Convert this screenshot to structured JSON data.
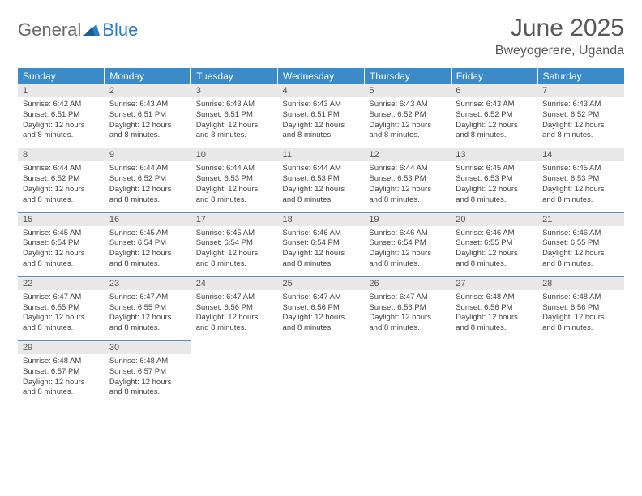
{
  "logo": {
    "word1": "General",
    "word2": "Blue"
  },
  "title": "June 2025",
  "location": "Bweyogerere, Uganda",
  "colors": {
    "header_bg": "#3b8bc8",
    "header_text": "#ffffff",
    "daynum_bg": "#e8e8e8",
    "border": "#5a8cb5",
    "logo_gray": "#6b6b6b",
    "logo_blue": "#2f7ec1"
  },
  "weekdays": [
    "Sunday",
    "Monday",
    "Tuesday",
    "Wednesday",
    "Thursday",
    "Friday",
    "Saturday"
  ],
  "days": [
    {
      "n": "1",
      "sr": "Sunrise: 6:42 AM",
      "ss": "Sunset: 6:51 PM",
      "dl1": "Daylight: 12 hours",
      "dl2": "and 8 minutes."
    },
    {
      "n": "2",
      "sr": "Sunrise: 6:43 AM",
      "ss": "Sunset: 6:51 PM",
      "dl1": "Daylight: 12 hours",
      "dl2": "and 8 minutes."
    },
    {
      "n": "3",
      "sr": "Sunrise: 6:43 AM",
      "ss": "Sunset: 6:51 PM",
      "dl1": "Daylight: 12 hours",
      "dl2": "and 8 minutes."
    },
    {
      "n": "4",
      "sr": "Sunrise: 6:43 AM",
      "ss": "Sunset: 6:51 PM",
      "dl1": "Daylight: 12 hours",
      "dl2": "and 8 minutes."
    },
    {
      "n": "5",
      "sr": "Sunrise: 6:43 AM",
      "ss": "Sunset: 6:52 PM",
      "dl1": "Daylight: 12 hours",
      "dl2": "and 8 minutes."
    },
    {
      "n": "6",
      "sr": "Sunrise: 6:43 AM",
      "ss": "Sunset: 6:52 PM",
      "dl1": "Daylight: 12 hours",
      "dl2": "and 8 minutes."
    },
    {
      "n": "7",
      "sr": "Sunrise: 6:43 AM",
      "ss": "Sunset: 6:52 PM",
      "dl1": "Daylight: 12 hours",
      "dl2": "and 8 minutes."
    },
    {
      "n": "8",
      "sr": "Sunrise: 6:44 AM",
      "ss": "Sunset: 6:52 PM",
      "dl1": "Daylight: 12 hours",
      "dl2": "and 8 minutes."
    },
    {
      "n": "9",
      "sr": "Sunrise: 6:44 AM",
      "ss": "Sunset: 6:52 PM",
      "dl1": "Daylight: 12 hours",
      "dl2": "and 8 minutes."
    },
    {
      "n": "10",
      "sr": "Sunrise: 6:44 AM",
      "ss": "Sunset: 6:53 PM",
      "dl1": "Daylight: 12 hours",
      "dl2": "and 8 minutes."
    },
    {
      "n": "11",
      "sr": "Sunrise: 6:44 AM",
      "ss": "Sunset: 6:53 PM",
      "dl1": "Daylight: 12 hours",
      "dl2": "and 8 minutes."
    },
    {
      "n": "12",
      "sr": "Sunrise: 6:44 AM",
      "ss": "Sunset: 6:53 PM",
      "dl1": "Daylight: 12 hours",
      "dl2": "and 8 minutes."
    },
    {
      "n": "13",
      "sr": "Sunrise: 6:45 AM",
      "ss": "Sunset: 6:53 PM",
      "dl1": "Daylight: 12 hours",
      "dl2": "and 8 minutes."
    },
    {
      "n": "14",
      "sr": "Sunrise: 6:45 AM",
      "ss": "Sunset: 6:53 PM",
      "dl1": "Daylight: 12 hours",
      "dl2": "and 8 minutes."
    },
    {
      "n": "15",
      "sr": "Sunrise: 6:45 AM",
      "ss": "Sunset: 6:54 PM",
      "dl1": "Daylight: 12 hours",
      "dl2": "and 8 minutes."
    },
    {
      "n": "16",
      "sr": "Sunrise: 6:45 AM",
      "ss": "Sunset: 6:54 PM",
      "dl1": "Daylight: 12 hours",
      "dl2": "and 8 minutes."
    },
    {
      "n": "17",
      "sr": "Sunrise: 6:45 AM",
      "ss": "Sunset: 6:54 PM",
      "dl1": "Daylight: 12 hours",
      "dl2": "and 8 minutes."
    },
    {
      "n": "18",
      "sr": "Sunrise: 6:46 AM",
      "ss": "Sunset: 6:54 PM",
      "dl1": "Daylight: 12 hours",
      "dl2": "and 8 minutes."
    },
    {
      "n": "19",
      "sr": "Sunrise: 6:46 AM",
      "ss": "Sunset: 6:54 PM",
      "dl1": "Daylight: 12 hours",
      "dl2": "and 8 minutes."
    },
    {
      "n": "20",
      "sr": "Sunrise: 6:46 AM",
      "ss": "Sunset: 6:55 PM",
      "dl1": "Daylight: 12 hours",
      "dl2": "and 8 minutes."
    },
    {
      "n": "21",
      "sr": "Sunrise: 6:46 AM",
      "ss": "Sunset: 6:55 PM",
      "dl1": "Daylight: 12 hours",
      "dl2": "and 8 minutes."
    },
    {
      "n": "22",
      "sr": "Sunrise: 6:47 AM",
      "ss": "Sunset: 6:55 PM",
      "dl1": "Daylight: 12 hours",
      "dl2": "and 8 minutes."
    },
    {
      "n": "23",
      "sr": "Sunrise: 6:47 AM",
      "ss": "Sunset: 6:55 PM",
      "dl1": "Daylight: 12 hours",
      "dl2": "and 8 minutes."
    },
    {
      "n": "24",
      "sr": "Sunrise: 6:47 AM",
      "ss": "Sunset: 6:56 PM",
      "dl1": "Daylight: 12 hours",
      "dl2": "and 8 minutes."
    },
    {
      "n": "25",
      "sr": "Sunrise: 6:47 AM",
      "ss": "Sunset: 6:56 PM",
      "dl1": "Daylight: 12 hours",
      "dl2": "and 8 minutes."
    },
    {
      "n": "26",
      "sr": "Sunrise: 6:47 AM",
      "ss": "Sunset: 6:56 PM",
      "dl1": "Daylight: 12 hours",
      "dl2": "and 8 minutes."
    },
    {
      "n": "27",
      "sr": "Sunrise: 6:48 AM",
      "ss": "Sunset: 6:56 PM",
      "dl1": "Daylight: 12 hours",
      "dl2": "and 8 minutes."
    },
    {
      "n": "28",
      "sr": "Sunrise: 6:48 AM",
      "ss": "Sunset: 6:56 PM",
      "dl1": "Daylight: 12 hours",
      "dl2": "and 8 minutes."
    },
    {
      "n": "29",
      "sr": "Sunrise: 6:48 AM",
      "ss": "Sunset: 6:57 PM",
      "dl1": "Daylight: 12 hours",
      "dl2": "and 8 minutes."
    },
    {
      "n": "30",
      "sr": "Sunrise: 6:48 AM",
      "ss": "Sunset: 6:57 PM",
      "dl1": "Daylight: 12 hours",
      "dl2": "and 8 minutes."
    }
  ]
}
